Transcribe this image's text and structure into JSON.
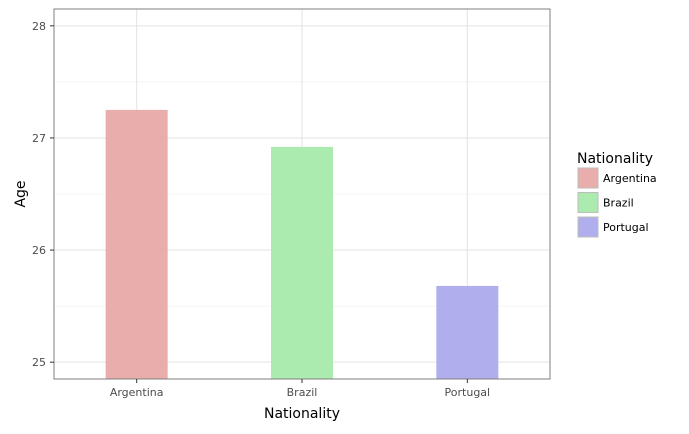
{
  "chart_data": {
    "type": "bar",
    "title": "",
    "xlabel": "Nationality",
    "ylabel": "Age",
    "categories": [
      "Argentina",
      "Brazil",
      "Portugal"
    ],
    "values": [
      27.25,
      26.92,
      25.68
    ],
    "ylim": [
      24.85,
      28.15
    ],
    "yticks": [
      25,
      26,
      27,
      28
    ],
    "grid": true,
    "legend": {
      "title": "Nationality",
      "placement": "right",
      "entries": [
        "Argentina",
        "Brazil",
        "Portugal"
      ]
    },
    "colors": [
      "#e8a9a6",
      "#a8eaab",
      "#acaaec"
    ],
    "bar_opacity": 0.95
  }
}
